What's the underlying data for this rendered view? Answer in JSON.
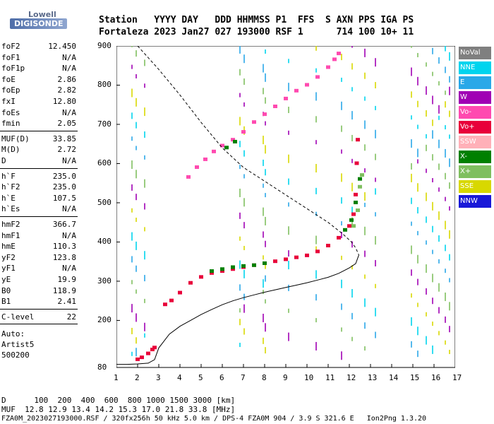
{
  "logo": {
    "line1": "Lowell",
    "line2": "DIGISONDE"
  },
  "header": {
    "labels": [
      "Station",
      "YYYY",
      "DAY",
      "DDD",
      "HHMMSS",
      "P1",
      "FFS",
      "S",
      "AXN",
      "PPS",
      "IGA",
      "PS"
    ],
    "values": [
      "Fortaleza",
      "2023",
      "Jan27",
      "027",
      "193000",
      "RSF",
      "1",
      "714",
      "100",
      "10+",
      "11"
    ]
  },
  "params_group1": [
    {
      "label": "foF2",
      "value": "12.450"
    },
    {
      "label": "foF1",
      "value": "N/A"
    },
    {
      "label": "foF1p",
      "value": "N/A"
    },
    {
      "label": "foE",
      "value": "2.86"
    },
    {
      "label": "foEp",
      "value": "2.82"
    },
    {
      "label": "fxI",
      "value": "12.80"
    },
    {
      "label": "foEs",
      "value": "N/A"
    },
    {
      "label": "fmin",
      "value": "2.05"
    }
  ],
  "params_group2": [
    {
      "label": "MUF(D)",
      "value": "33.85"
    },
    {
      "label": "M(D)",
      "value": "2.72"
    },
    {
      "label": "D",
      "value": "N/A"
    }
  ],
  "params_group3": [
    {
      "label": "h`F",
      "value": "235.0"
    },
    {
      "label": "h`F2",
      "value": "235.0"
    },
    {
      "label": "h`E",
      "value": "107.5"
    },
    {
      "label": "h`Es",
      "value": "N/A"
    }
  ],
  "params_group4": [
    {
      "label": "hmF2",
      "value": "366.7"
    },
    {
      "label": "hmF1",
      "value": "N/A"
    },
    {
      "label": "hmE",
      "value": "110.3"
    },
    {
      "label": "yF2",
      "value": "123.8"
    },
    {
      "label": "yF1",
      "value": "N/A"
    },
    {
      "label": "yE",
      "value": "19.9"
    },
    {
      "label": "B0",
      "value": "118.9"
    },
    {
      "label": "B1",
      "value": "2.41"
    }
  ],
  "clevel": {
    "label": "C-level",
    "value": "22"
  },
  "auto": {
    "line1": "Auto:",
    "line2": "Artist5",
    "line3": "500200"
  },
  "legend": [
    {
      "label": "NoVal",
      "color": "#7f7f7f"
    },
    {
      "label": "NNE",
      "color": "#00d4ee"
    },
    {
      "label": "E",
      "color": "#2aa8e8"
    },
    {
      "label": "W",
      "color": "#a000b4"
    },
    {
      "label": "Vo-",
      "color": "#ff4ab0"
    },
    {
      "label": "Vo+",
      "color": "#e8003a"
    },
    {
      "label": "SSW",
      "color": "#ffb0b8"
    },
    {
      "label": "X-",
      "color": "#008000"
    },
    {
      "label": "X+",
      "color": "#7fbf5f"
    },
    {
      "label": "SSE",
      "color": "#d8d800"
    },
    {
      "label": "NNW",
      "color": "#1818d8"
    }
  ],
  "chart_data": {
    "type": "scatter",
    "xlim": [
      1,
      17
    ],
    "ylim": [
      80,
      900
    ],
    "x_ticks": [
      "1",
      "2",
      "3",
      "4",
      "5",
      "6",
      "7",
      "8",
      "9",
      "10",
      "11",
      "12",
      "13",
      "14",
      "15",
      "16",
      "17"
    ],
    "y_ticks": [
      "80",
      "200",
      "300",
      "400",
      "500",
      "600",
      "700",
      "800",
      "900"
    ],
    "series": [
      {
        "color": "#e8003a",
        "points": [
          [
            3.3,
            240
          ],
          [
            3.6,
            250
          ],
          [
            4.0,
            270
          ],
          [
            4.5,
            295
          ],
          [
            5.0,
            310
          ],
          [
            5.5,
            320
          ],
          [
            6.0,
            325
          ],
          [
            6.5,
            330
          ],
          [
            7.0,
            335
          ],
          [
            7.5,
            340
          ],
          [
            8.0,
            345
          ],
          [
            8.5,
            350
          ],
          [
            9.0,
            355
          ],
          [
            9.5,
            360
          ],
          [
            10.0,
            365
          ],
          [
            10.5,
            375
          ],
          [
            11.0,
            390
          ],
          [
            11.5,
            410
          ],
          [
            12.0,
            440
          ],
          [
            12.2,
            470
          ],
          [
            12.3,
            520
          ],
          [
            12.35,
            600
          ],
          [
            12.4,
            660
          ]
        ]
      },
      {
        "color": "#ff4ab0",
        "points": [
          [
            4.4,
            565
          ],
          [
            4.8,
            590
          ],
          [
            5.2,
            610
          ],
          [
            5.6,
            630
          ],
          [
            6.0,
            645
          ],
          [
            6.5,
            660
          ],
          [
            7.0,
            680
          ],
          [
            7.5,
            705
          ],
          [
            8.0,
            725
          ],
          [
            8.5,
            745
          ],
          [
            9.0,
            765
          ],
          [
            9.5,
            785
          ],
          [
            10.0,
            800
          ],
          [
            10.5,
            820
          ],
          [
            11.0,
            845
          ],
          [
            11.3,
            865
          ],
          [
            11.5,
            880
          ]
        ]
      },
      {
        "color": "#008000",
        "points": [
          [
            5.5,
            325
          ],
          [
            6.0,
            330
          ],
          [
            6.5,
            335
          ],
          [
            7.0,
            338
          ],
          [
            7.5,
            340
          ],
          [
            8.0,
            345
          ],
          [
            11.8,
            430
          ],
          [
            12.1,
            455
          ],
          [
            12.3,
            500
          ],
          [
            12.5,
            560
          ],
          [
            6.2,
            640
          ],
          [
            6.6,
            655
          ]
        ]
      },
      {
        "color": "#7fbf5f",
        "points": [
          [
            12.2,
            440
          ],
          [
            12.4,
            480
          ],
          [
            12.5,
            540
          ],
          [
            12.6,
            570
          ]
        ]
      },
      {
        "color": "#e8003a",
        "points": [
          [
            2.0,
            100
          ],
          [
            2.2,
            105
          ],
          [
            2.5,
            115
          ],
          [
            2.7,
            125
          ],
          [
            2.8,
            130
          ]
        ]
      }
    ],
    "lines": [
      {
        "style": "solid",
        "points": [
          [
            1.0,
            88
          ],
          [
            1.5,
            88
          ],
          [
            2.0,
            89
          ],
          [
            2.5,
            91
          ],
          [
            2.8,
            100
          ],
          [
            3.0,
            130
          ],
          [
            3.5,
            165
          ],
          [
            4.0,
            185
          ],
          [
            4.5,
            200
          ],
          [
            5.0,
            215
          ],
          [
            5.5,
            228
          ],
          [
            6.0,
            240
          ],
          [
            6.5,
            250
          ],
          [
            7.0,
            258
          ],
          [
            7.5,
            265
          ],
          [
            8.0,
            272
          ],
          [
            8.5,
            278
          ],
          [
            9.0,
            284
          ],
          [
            9.5,
            290
          ],
          [
            10.0,
            296
          ],
          [
            10.5,
            303
          ],
          [
            11.0,
            310
          ],
          [
            11.5,
            320
          ],
          [
            12.0,
            334
          ],
          [
            12.3,
            345
          ],
          [
            12.45,
            367
          ]
        ]
      },
      {
        "style": "dashed",
        "points": [
          [
            2.0,
            900
          ],
          [
            2.5,
            870
          ],
          [
            3.0,
            840
          ],
          [
            4.0,
            775
          ],
          [
            5.0,
            705
          ],
          [
            6.0,
            640
          ],
          [
            7.0,
            590
          ],
          [
            8.0,
            555
          ],
          [
            9.0,
            520
          ],
          [
            10.0,
            485
          ],
          [
            11.0,
            450
          ],
          [
            11.7,
            420
          ],
          [
            12.1,
            400
          ],
          [
            12.3,
            385
          ],
          [
            12.45,
            367
          ]
        ]
      }
    ]
  },
  "footer": {
    "line1": "D      100  200  400  600  800 1000 1500 3000 [km]",
    "line2": "MUF  12.8 12.9 13.4 14.2 15.3 17.0 21.8 33.8 [MHz]",
    "line3": "FZA0M_2023027193000.RSF / 320fx256h 50 kHz 5.0 km / DPS-4 FZA0M 904 / 3.9 S 321.6 E   Ion2Png 1.3.20"
  }
}
